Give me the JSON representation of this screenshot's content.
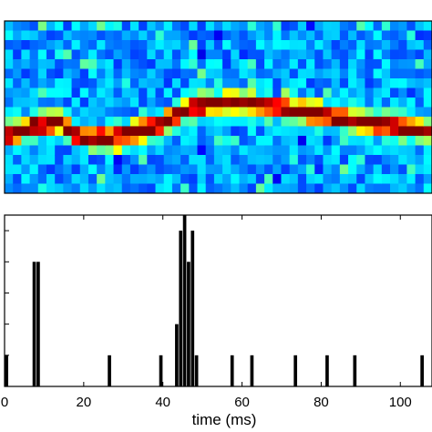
{
  "chart_data": [
    {
      "type": "heatmap",
      "colormap": "jet",
      "rows": 18,
      "cols": 51,
      "xlim": [
        0,
        108
      ],
      "ridge_path": [
        {
          "x": 0,
          "row": 12.0
        },
        {
          "x": 8,
          "row": 11.0
        },
        {
          "x": 14,
          "row": 10.6
        },
        {
          "x": 19,
          "row": 12.2
        },
        {
          "x": 28,
          "row": 12.2
        },
        {
          "x": 40,
          "row": 10.8
        },
        {
          "x": 47,
          "row": 8.9
        },
        {
          "x": 58,
          "row": 8.5
        },
        {
          "x": 70,
          "row": 9.1
        },
        {
          "x": 82,
          "row": 10.0
        },
        {
          "x": 95,
          "row": 10.8
        },
        {
          "x": 108,
          "row": 11.6
        }
      ],
      "colors": {
        "frame": "#000000"
      }
    },
    {
      "type": "bar",
      "xlabel": "time (ms)",
      "xlim": [
        0,
        108
      ],
      "ylim": [
        0,
        5.5
      ],
      "xticks": [
        0,
        20,
        40,
        60,
        80,
        100
      ],
      "xtick_labels": [
        "0",
        "20",
        "40",
        "60",
        "80",
        "100"
      ],
      "ytick_values": [
        1,
        2,
        3,
        4,
        5
      ],
      "bar_width": 1.0,
      "bar_color": "#000000",
      "x": [
        0.5,
        7.5,
        8.5,
        26.5,
        39.5,
        43.5,
        44.5,
        45.5,
        46.5,
        47.5,
        48.5,
        57.5,
        62.5,
        73.5,
        81.5,
        88.5,
        105.5
      ],
      "values": [
        1,
        4,
        4,
        1,
        1,
        2,
        5,
        6,
        4,
        5,
        1,
        1,
        1,
        1,
        1,
        1,
        1
      ]
    }
  ]
}
